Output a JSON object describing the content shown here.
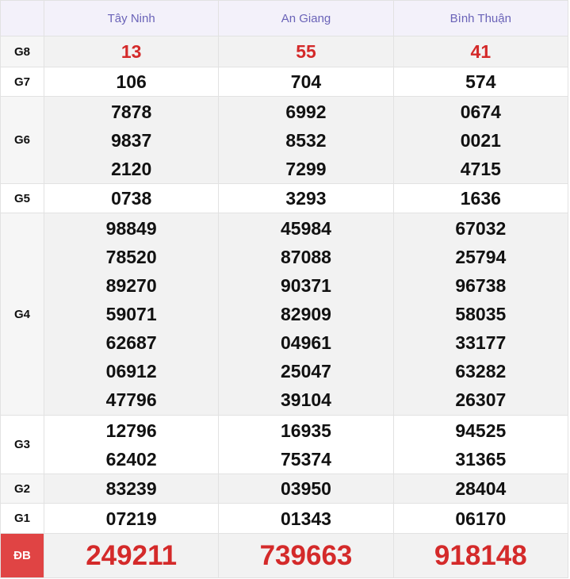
{
  "header": {
    "columns": [
      "Tây Ninh",
      "An Giang",
      "Bình Thuận"
    ]
  },
  "rows": [
    {
      "label": "G8",
      "cells": [
        [
          "13"
        ],
        [
          "55"
        ],
        [
          "41"
        ]
      ]
    },
    {
      "label": "G7",
      "cells": [
        [
          "106"
        ],
        [
          "704"
        ],
        [
          "574"
        ]
      ]
    },
    {
      "label": "G6",
      "cells": [
        [
          "7878",
          "9837",
          "2120"
        ],
        [
          "6992",
          "8532",
          "7299"
        ],
        [
          "0674",
          "0021",
          "4715"
        ]
      ]
    },
    {
      "label": "G5",
      "cells": [
        [
          "0738"
        ],
        [
          "3293"
        ],
        [
          "1636"
        ]
      ]
    },
    {
      "label": "G4",
      "cells": [
        [
          "98849",
          "78520",
          "89270",
          "59071",
          "62687",
          "06912",
          "47796"
        ],
        [
          "45984",
          "87088",
          "90371",
          "82909",
          "04961",
          "25047",
          "39104"
        ],
        [
          "67032",
          "25794",
          "96738",
          "58035",
          "33177",
          "63282",
          "26307"
        ]
      ]
    },
    {
      "label": "G3",
      "cells": [
        [
          "12796",
          "62402"
        ],
        [
          "16935",
          "75374"
        ],
        [
          "94525",
          "31365"
        ]
      ]
    },
    {
      "label": "G2",
      "cells": [
        [
          "83239"
        ],
        [
          "03950"
        ],
        [
          "28404"
        ]
      ]
    },
    {
      "label": "G1",
      "cells": [
        [
          "07219"
        ],
        [
          "01343"
        ],
        [
          "06170"
        ]
      ]
    },
    {
      "label": "ĐB",
      "cells": [
        [
          "249211"
        ],
        [
          "739663"
        ],
        [
          "918148"
        ]
      ]
    }
  ]
}
